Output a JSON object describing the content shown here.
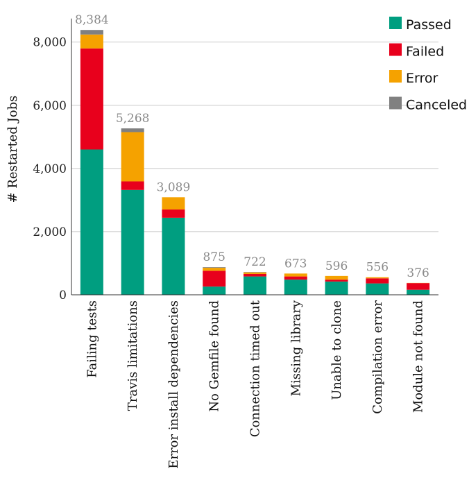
{
  "chart_data": {
    "type": "bar",
    "stacked": true,
    "title": "",
    "xlabel": "",
    "ylabel": "# Restarted Jobs",
    "ylim": [
      0,
      8700
    ],
    "yticks": [
      0,
      2000,
      4000,
      6000,
      8000
    ],
    "ytick_labels": [
      "0",
      "2,000",
      "4,000",
      "6,000",
      "8,000"
    ],
    "grid": true,
    "legend_position": "top-right",
    "categories": [
      "Failing tests",
      "Travis limitations",
      "Error install dependencies",
      "No Gemfile found",
      "Connection timed out",
      "Missing library",
      "Unable to clone",
      "Compilation error",
      "Module not found"
    ],
    "totals": [
      8384,
      5268,
      3089,
      875,
      722,
      673,
      596,
      556,
      376
    ],
    "total_labels": [
      "8,384",
      "5,268",
      "3,089",
      "875",
      "722",
      "673",
      "596",
      "556",
      "376"
    ],
    "series": [
      {
        "name": "Passed",
        "color": "#009e80",
        "values": [
          4600,
          3320,
          2440,
          260,
          580,
          480,
          420,
          360,
          160
        ]
      },
      {
        "name": "Failed",
        "color": "#e8001c",
        "values": [
          3200,
          270,
          260,
          500,
          80,
          100,
          60,
          160,
          210
        ]
      },
      {
        "name": "Error",
        "color": "#f5a200",
        "values": [
          440,
          1560,
          389,
          95,
          50,
          93,
          116,
          36,
          6
        ]
      },
      {
        "name": "Canceled",
        "color": "#808080",
        "values": [
          144,
          118,
          0,
          20,
          12,
          0,
          0,
          0,
          0
        ]
      }
    ]
  }
}
